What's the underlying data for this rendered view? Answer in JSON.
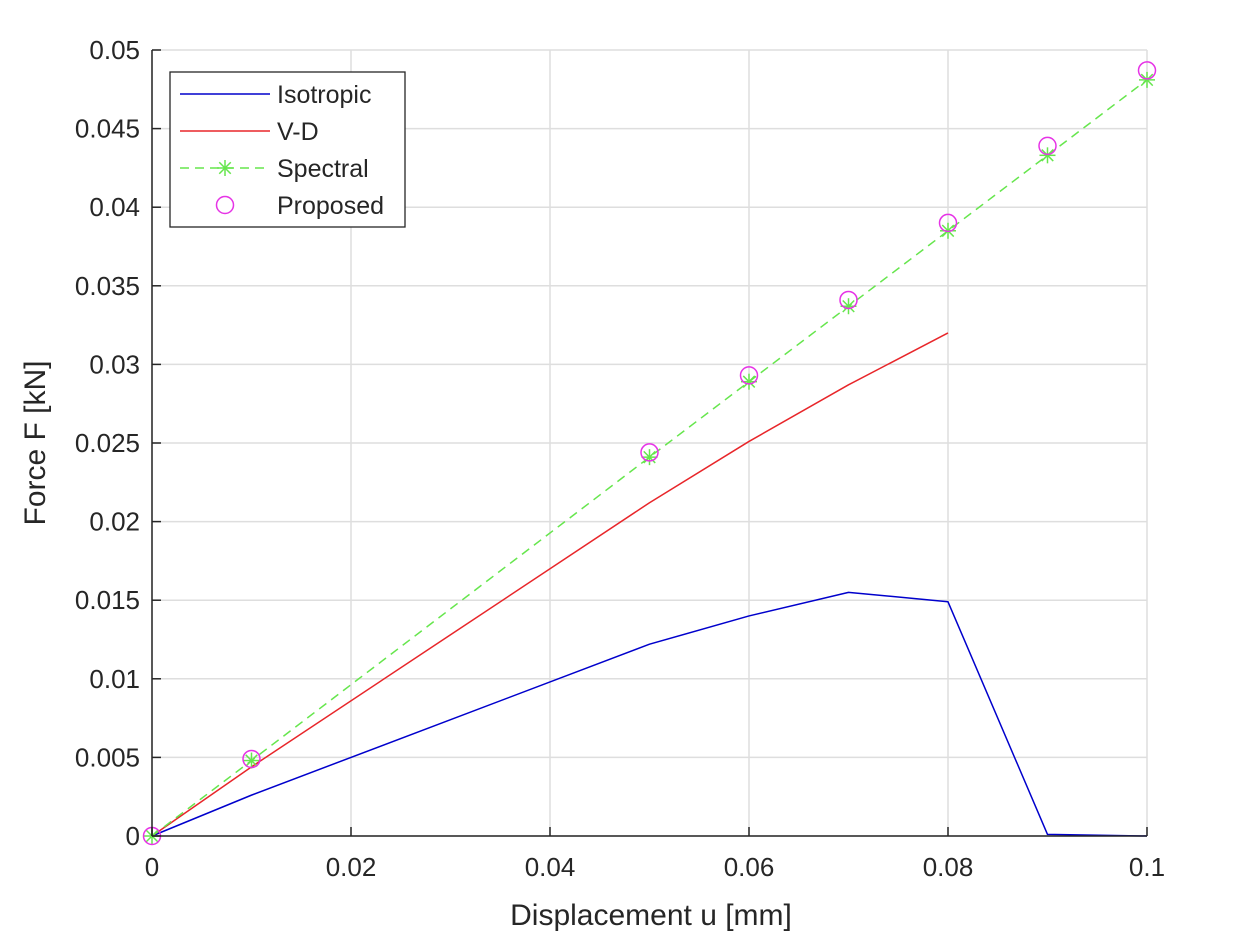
{
  "chart_data": {
    "type": "line",
    "title": "",
    "xlabel": "Displacement u [mm]",
    "ylabel": "Force F [kN]",
    "xlim": [
      0,
      0.1
    ],
    "ylim": [
      0,
      0.05
    ],
    "xticks": [
      0,
      0.02,
      0.04,
      0.06,
      0.08,
      0.1
    ],
    "xtick_labels": [
      "0",
      "0.02",
      "0.04",
      "0.06",
      "0.08",
      "0.1"
    ],
    "yticks": [
      0,
      0.005,
      0.01,
      0.015,
      0.02,
      0.025,
      0.03,
      0.035,
      0.04,
      0.045,
      0.05
    ],
    "ytick_labels": [
      "0",
      "0.005",
      "0.01",
      "0.015",
      "0.02",
      "0.025",
      "0.03",
      "0.035",
      "0.04",
      "0.045",
      "0.05"
    ],
    "grid": true,
    "legend_position": "top-left",
    "series": [
      {
        "name": "Isotropic",
        "color": "#0000cc",
        "style": "solid",
        "marker": "none",
        "x": [
          0,
          0.01,
          0.05,
          0.06,
          0.07,
          0.08,
          0.09,
          0.1
        ],
        "y": [
          0,
          0.0026,
          0.0122,
          0.014,
          0.0155,
          0.0149,
          0.0001,
          0.0
        ]
      },
      {
        "name": "V-D",
        "color": "#e8262a",
        "style": "solid",
        "marker": "none",
        "x": [
          0,
          0.01,
          0.05,
          0.06,
          0.07,
          0.08
        ],
        "y": [
          0,
          0.0044,
          0.0212,
          0.0251,
          0.0287,
          0.032
        ]
      },
      {
        "name": "Spectral",
        "color": "#66e64d",
        "style": "dashed",
        "marker": "asterisk",
        "x": [
          0,
          0.01,
          0.05,
          0.06,
          0.07,
          0.08,
          0.09,
          0.1
        ],
        "y": [
          0,
          0.0048,
          0.0241,
          0.0289,
          0.0337,
          0.0385,
          0.0433,
          0.0481
        ]
      },
      {
        "name": "Proposed",
        "color": "#e633e6",
        "style": "none",
        "marker": "circle",
        "x": [
          0,
          0.01,
          0.05,
          0.06,
          0.07,
          0.08,
          0.09,
          0.1
        ],
        "y": [
          0,
          0.0049,
          0.0244,
          0.0293,
          0.0341,
          0.039,
          0.0439,
          0.0487
        ]
      }
    ]
  }
}
